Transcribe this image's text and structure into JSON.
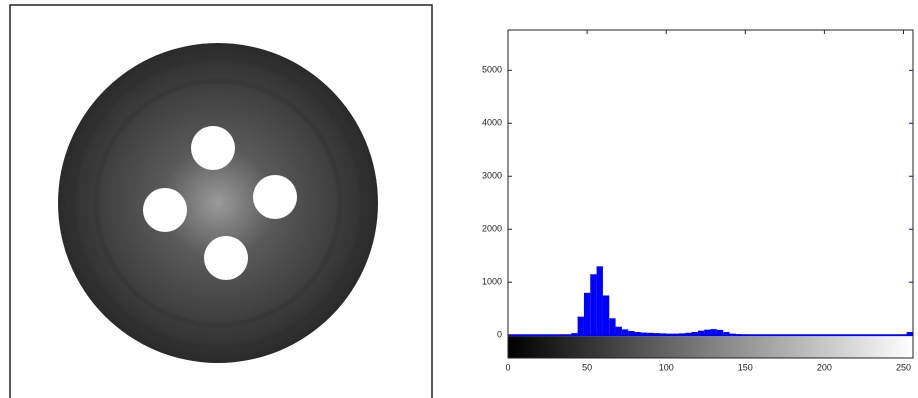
{
  "chart_data": {
    "type": "histogram",
    "color": "#0000ff",
    "bins": [
      0,
      4,
      8,
      12,
      16,
      20,
      24,
      28,
      32,
      36,
      40,
      44,
      48,
      52,
      56,
      60,
      64,
      68,
      72,
      76,
      80,
      84,
      88,
      92,
      96,
      100,
      104,
      108,
      112,
      116,
      120,
      124,
      128,
      132,
      136,
      140,
      144,
      148,
      152,
      156,
      160,
      164,
      168,
      172,
      176,
      180,
      184,
      188,
      192,
      196,
      200,
      204,
      208,
      212,
      216,
      220,
      224,
      228,
      232,
      236,
      240,
      244,
      248,
      252,
      256
    ],
    "values": [
      0,
      0,
      0,
      0,
      0,
      0,
      0,
      0,
      0,
      0,
      40,
      350,
      800,
      1150,
      1300,
      750,
      320,
      160,
      110,
      80,
      60,
      50,
      45,
      40,
      35,
      30,
      30,
      35,
      45,
      60,
      85,
      105,
      115,
      100,
      60,
      30,
      20,
      15,
      12,
      10,
      8,
      8,
      8,
      8,
      8,
      8,
      8,
      8,
      8,
      8,
      8,
      8,
      8,
      8,
      8,
      8,
      8,
      8,
      8,
      8,
      8,
      8,
      8,
      60
    ],
    "xlim": [
      0,
      256
    ],
    "ylim": [
      -430,
      5760
    ],
    "xticks": [
      0,
      50,
      100,
      150,
      200,
      250
    ],
    "yticks": [
      0,
      1000,
      2000,
      3000,
      4000,
      5000
    ]
  }
}
